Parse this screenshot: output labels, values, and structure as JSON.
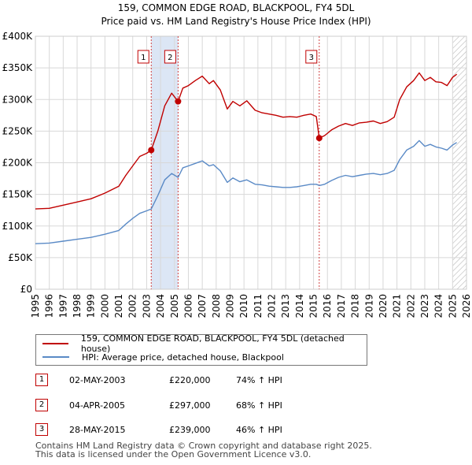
{
  "colors": {
    "price_line": "#c00000",
    "hpi_line": "#5a8ac6",
    "shade": "#dce6f5",
    "grid": "#d8d8d8",
    "vline": "#d04040",
    "hatch": "#b8b8b8"
  },
  "chart_data": {
    "type": "line",
    "title": "159, COMMON EDGE ROAD, BLACKPOOL, FY4 5DL",
    "subtitle": "Price paid vs. HM Land Registry's House Price Index (HPI)",
    "xlim": [
      1995,
      2026
    ],
    "ylim": [
      0,
      400000
    ],
    "x_ticks": [
      1995,
      1996,
      1997,
      1998,
      1999,
      2000,
      2001,
      2002,
      2003,
      2004,
      2005,
      2006,
      2007,
      2008,
      2009,
      2010,
      2011,
      2012,
      2013,
      2014,
      2015,
      2016,
      2017,
      2018,
      2019,
      2020,
      2021,
      2022,
      2023,
      2024,
      2025,
      2026
    ],
    "y_ticks": [
      {
        "value": 0,
        "label": "£0"
      },
      {
        "value": 50000,
        "label": "£50K"
      },
      {
        "value": 100000,
        "label": "£100K"
      },
      {
        "value": 150000,
        "label": "£150K"
      },
      {
        "value": 200000,
        "label": "£200K"
      },
      {
        "value": 250000,
        "label": "£250K"
      },
      {
        "value": 300000,
        "label": "£300K"
      },
      {
        "value": 350000,
        "label": "£350K"
      },
      {
        "value": 400000,
        "label": "£400K"
      }
    ],
    "shaded_ranges": [
      [
        2003.33,
        2005.26
      ]
    ],
    "hatched_from": 2025.0,
    "series": [
      {
        "name": "159, COMMON EDGE ROAD, BLACKPOOL, FY4 5DL (detached house)",
        "color": "#c00000",
        "x": [
          1995,
          1996,
          1997,
          1998,
          1999,
          2000,
          2001,
          2001.5,
          2002,
          2002.5,
          2003,
          2003.33,
          2003.8,
          2004.3,
          2004.8,
          2005.26,
          2005.6,
          2006,
          2006.5,
          2007,
          2007.5,
          2007.8,
          2008.3,
          2008.8,
          2009.2,
          2009.7,
          2010.2,
          2010.8,
          2011.3,
          2011.8,
          2012.3,
          2012.8,
          2013.3,
          2013.8,
          2014.3,
          2014.8,
          2015.2,
          2015.41,
          2015.8,
          2016.3,
          2016.8,
          2017.3,
          2017.8,
          2018.3,
          2018.8,
          2019.3,
          2019.8,
          2020.3,
          2020.8,
          2021.2,
          2021.7,
          2022.2,
          2022.6,
          2023.0,
          2023.4,
          2023.8,
          2024.2,
          2024.6,
          2025.0,
          2025.3
        ],
        "values": [
          127000,
          128000,
          133000,
          138000,
          143000,
          152000,
          163000,
          180000,
          195000,
          210000,
          215000,
          220000,
          250000,
          290000,
          310000,
          297000,
          318000,
          322000,
          330000,
          337000,
          325000,
          330000,
          315000,
          285000,
          297000,
          290000,
          298000,
          283000,
          279000,
          277000,
          275000,
          272000,
          273000,
          272000,
          275000,
          277000,
          273000,
          239000,
          243000,
          252000,
          258000,
          262000,
          259000,
          263000,
          264000,
          266000,
          262000,
          265000,
          272000,
          300000,
          320000,
          330000,
          342000,
          330000,
          335000,
          328000,
          327000,
          322000,
          335000,
          340000
        ]
      },
      {
        "name": "HPI: Average price, detached house, Blackpool",
        "color": "#5a8ac6",
        "x": [
          1995,
          1996,
          1997,
          1998,
          1999,
          2000,
          2001,
          2001.5,
          2002,
          2002.5,
          2003,
          2003.33,
          2003.8,
          2004.3,
          2004.8,
          2005.26,
          2005.6,
          2006,
          2006.5,
          2007,
          2007.5,
          2007.8,
          2008.3,
          2008.8,
          2009.2,
          2009.7,
          2010.2,
          2010.8,
          2011.3,
          2011.8,
          2012.3,
          2012.8,
          2013.3,
          2013.8,
          2014.3,
          2014.8,
          2015.2,
          2015.41,
          2015.8,
          2016.3,
          2016.8,
          2017.3,
          2017.8,
          2018.3,
          2018.8,
          2019.3,
          2019.8,
          2020.3,
          2020.8,
          2021.2,
          2021.7,
          2022.2,
          2022.6,
          2023.0,
          2023.4,
          2023.8,
          2024.2,
          2024.6,
          2025.0,
          2025.3
        ],
        "values": [
          72000,
          73000,
          76000,
          79000,
          82000,
          87000,
          93000,
          103000,
          112000,
          120000,
          124000,
          127000,
          148000,
          173000,
          183000,
          177000,
          192000,
          195000,
          199000,
          203000,
          195000,
          197000,
          187000,
          169000,
          176000,
          170000,
          173000,
          166000,
          165000,
          163000,
          162000,
          161000,
          161000,
          162000,
          164000,
          166000,
          166000,
          164000,
          166000,
          172000,
          177000,
          180000,
          178000,
          180000,
          182000,
          183000,
          181000,
          183000,
          188000,
          205000,
          220000,
          226000,
          235000,
          226000,
          229000,
          225000,
          223000,
          220000,
          228000,
          232000
        ]
      }
    ],
    "sales": [
      {
        "num": "1",
        "x": 2003.33,
        "price": 220000
      },
      {
        "num": "2",
        "x": 2005.26,
        "price": 297000
      },
      {
        "num": "3",
        "x": 2015.41,
        "price": 239000
      }
    ]
  },
  "legend": {
    "price_label": "159, COMMON EDGE ROAD, BLACKPOOL, FY4 5DL (detached house)",
    "hpi_label": "HPI: Average price, detached house, Blackpool"
  },
  "table": [
    {
      "num": "1",
      "date": "02-MAY-2003",
      "price": "£220,000",
      "hpi": "74% ↑ HPI"
    },
    {
      "num": "2",
      "date": "04-APR-2005",
      "price": "£297,000",
      "hpi": "68% ↑ HPI"
    },
    {
      "num": "3",
      "date": "28-MAY-2015",
      "price": "£239,000",
      "hpi": "46% ↑ HPI"
    }
  ],
  "footer": {
    "line1": "Contains HM Land Registry data © Crown copyright and database right 2025.",
    "line2": "This data is licensed under the Open Government Licence v3.0."
  }
}
